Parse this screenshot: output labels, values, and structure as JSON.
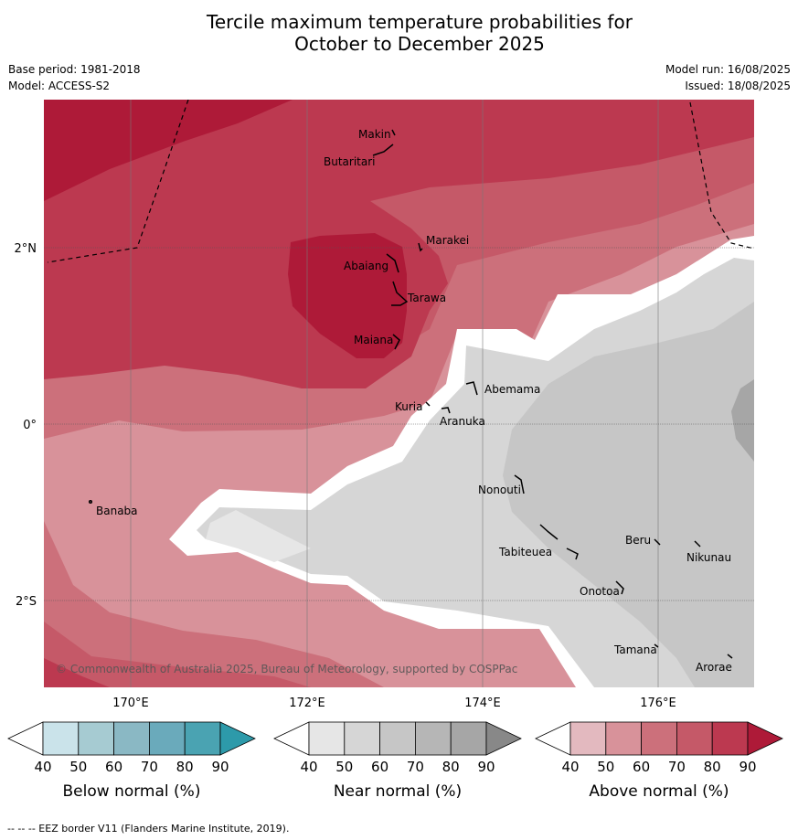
{
  "title_line1": "Tercile maximum temperature probabilities for",
  "title_line2": "October to December 2025",
  "base_period": "Base period: 1981-2018",
  "model": "Model: ACCESS-S2",
  "model_run": "Model run: 16/08/2025",
  "issued": "Issued: 18/08/2025",
  "copyright": "© Commonwealth of Australia 2025, Bureau of Meteorology, supported by COSPPac",
  "footnote": "-- -- -- EEZ border V11 (Flanders Marine Institute, 2019).",
  "x_ticks": [
    "170°E",
    "172°E",
    "174°E",
    "176°E"
  ],
  "y_ticks": [
    "2°N",
    "0°",
    "2°S"
  ],
  "places": [
    "Makin",
    "Butaritari",
    "Marakei",
    "Abaiang",
    "Tarawa",
    "Maiana",
    "Abemama",
    "Kuria",
    "Aranuka",
    "Nonouti",
    "Banaba",
    "Tabiteuea",
    "Beru",
    "Nikunau",
    "Onotoa",
    "Tamana",
    "Arorae"
  ],
  "colorbars": [
    {
      "label": "Below normal (%)",
      "ticks": [
        "40",
        "50",
        "60",
        "70",
        "80",
        "90"
      ],
      "colors": [
        "#ffffff",
        "#cae3ea",
        "#a6cbd2",
        "#8ab8c4",
        "#6aaabb",
        "#4aa3b2",
        "#2d9aaa"
      ]
    },
    {
      "label": "Near normal (%)",
      "ticks": [
        "40",
        "50",
        "60",
        "70",
        "80",
        "90"
      ],
      "colors": [
        "#ffffff",
        "#e6e6e6",
        "#d6d6d6",
        "#c6c6c6",
        "#b6b6b6",
        "#a6a6a6",
        "#888888"
      ]
    },
    {
      "label": "Above normal (%)",
      "ticks": [
        "40",
        "50",
        "60",
        "70",
        "80",
        "90"
      ],
      "colors": [
        "#ffffff",
        "#e3b9bf",
        "#d8929a",
        "#cc707b",
        "#c55968",
        "#bc3950",
        "#ae1a38"
      ]
    }
  ]
}
